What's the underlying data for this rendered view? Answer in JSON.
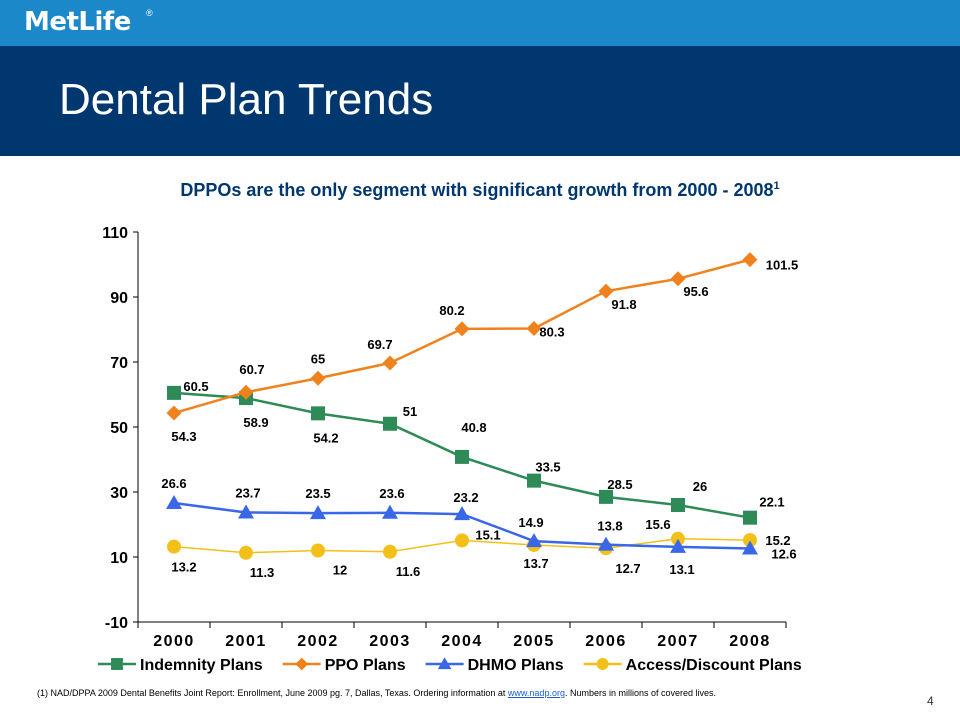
{
  "brand": {
    "logo_text": "MetLife",
    "registered_mark": "®"
  },
  "slide": {
    "title": "Dental Plan Trends",
    "subtitle": "DPPOs are the only segment with significant growth from 2000 - 2008",
    "subtitle_footnote_ref": "1",
    "page_number": "4"
  },
  "footnote": {
    "prefix": "(1) NAD/DPPA 2009 Dental Benefits Joint Report: Enrollment, June 2009 pg. 7, Dallas, Texas. Ordering information at ",
    "link_text": "www.nadp.org",
    "suffix": ". Numbers in millions of covered lives."
  },
  "colors": {
    "header_top": "#1a88c9",
    "header_band": "#00376e",
    "indemnity": "#2e8b57",
    "ppo": "#f0821e",
    "dhmo": "#3a67e8",
    "access": "#f2c018"
  },
  "chart_data": {
    "type": "line",
    "categories": [
      "2000",
      "2001",
      "2002",
      "2003",
      "2004",
      "2005",
      "2006",
      "2007",
      "2008"
    ],
    "ylim": [
      -10,
      110
    ],
    "yticks": [
      "110",
      "90",
      "70",
      "50",
      "30",
      "10",
      "-10"
    ],
    "legend_position": "bottom",
    "grid": false,
    "series": [
      {
        "name": "Indemnity Plans",
        "marker": "square",
        "color": "#2e8b57",
        "values": [
          60.5,
          58.9,
          54.2,
          51,
          40.8,
          33.5,
          28.5,
          26,
          22.1
        ]
      },
      {
        "name": "PPO Plans",
        "marker": "diamond",
        "color": "#f0821e",
        "values": [
          54.3,
          60.7,
          65,
          69.7,
          80.2,
          80.3,
          91.8,
          95.6,
          101.5
        ]
      },
      {
        "name": "DHMO Plans",
        "marker": "triangle",
        "color": "#3a67e8",
        "values": [
          26.6,
          23.7,
          23.5,
          23.6,
          23.2,
          14.9,
          13.8,
          13.1,
          12.6
        ]
      },
      {
        "name": "Access/Discount Plans",
        "marker": "circle",
        "color": "#f2c018",
        "values": [
          13.2,
          11.3,
          12,
          11.6,
          15.1,
          13.7,
          12.7,
          15.6,
          15.2
        ]
      }
    ],
    "data_labels": {
      "indemnity": [
        "60.5",
        "58.9",
        "54.2",
        "51",
        "40.8",
        "33.5",
        "28.5",
        "26",
        "22.1"
      ],
      "ppo": [
        "54.3",
        "60.7",
        "65",
        "69.7",
        "80.2",
        "80.3",
        "91.8",
        "95.6",
        "101.5"
      ],
      "dhmo": [
        "26.6",
        "23.7",
        "23.5",
        "23.6",
        "23.2",
        "14.9",
        "13.8",
        "13.1",
        "12.6"
      ],
      "access": [
        "13.2",
        "11.3",
        "12",
        "11.6",
        "15.1",
        "13.7",
        "12.7",
        "15.6",
        "15.2"
      ]
    }
  }
}
